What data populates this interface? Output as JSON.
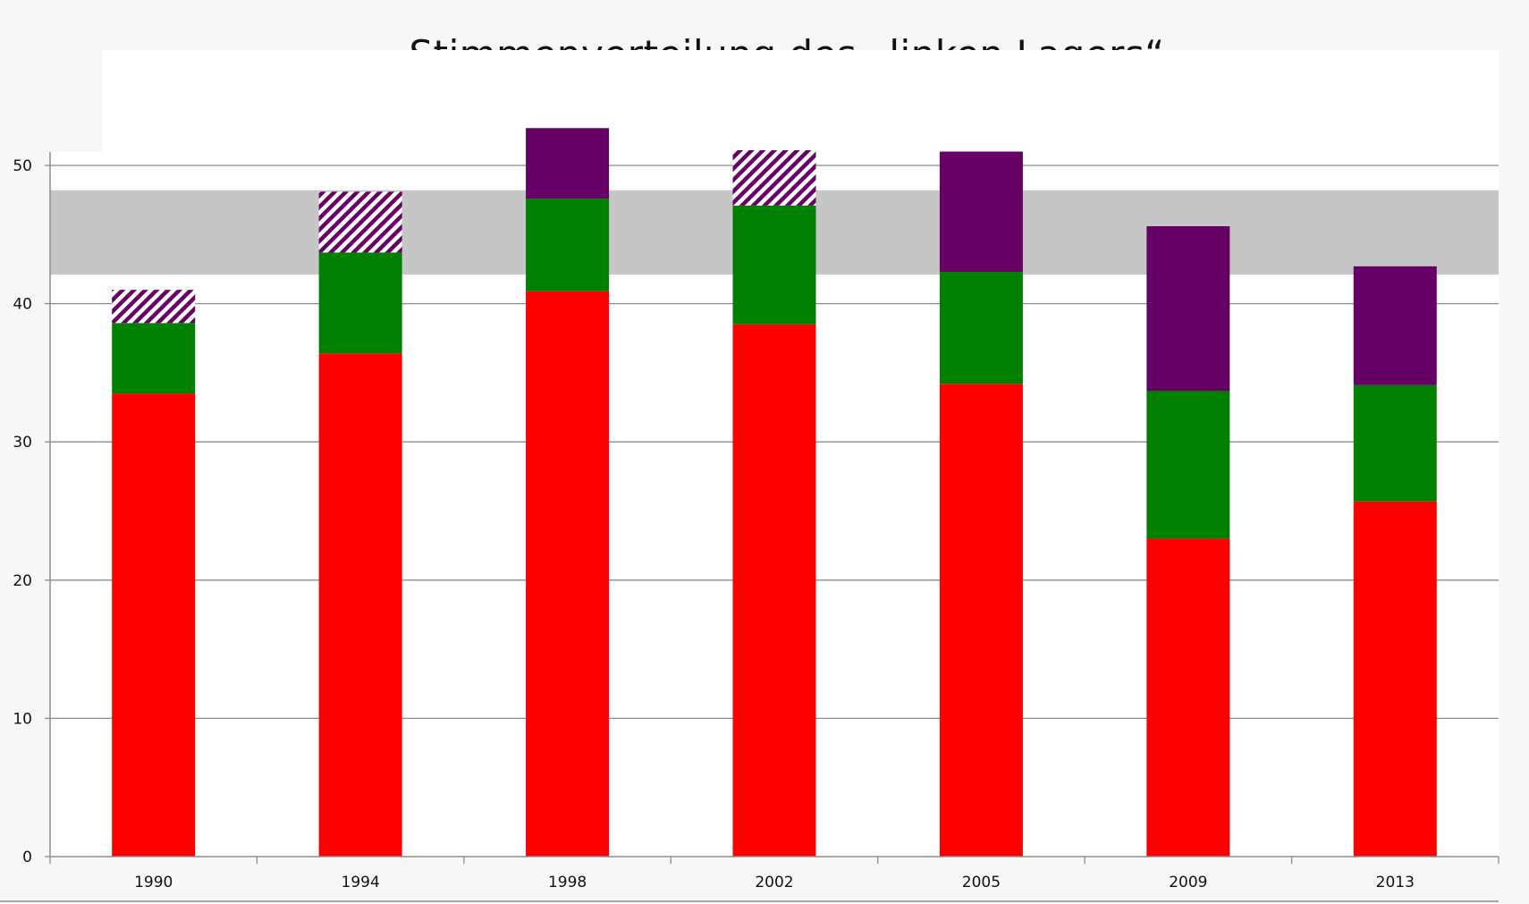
{
  "chart_data": {
    "type": "bar",
    "stacked": true,
    "title": "Stimmenverteilung des „linken Lagers“",
    "xlabel": "",
    "ylabel": "",
    "ylim": [
      0,
      50
    ],
    "yticks": [
      0,
      10,
      20,
      30,
      40,
      50
    ],
    "grid": true,
    "legend": "none",
    "categories": [
      "1990",
      "1994",
      "1998",
      "2002",
      "2005",
      "2009",
      "2013"
    ],
    "reference_band": {
      "from": 42.1,
      "to": 48.2,
      "color": "#c6c6c6"
    },
    "series": [
      {
        "color": "#ff0000",
        "pattern": "solid",
        "values": [
          33.5,
          36.4,
          40.9,
          38.5,
          34.2,
          23.0,
          25.7
        ]
      },
      {
        "color": "#008000",
        "pattern": "solid",
        "values": [
          5.1,
          7.3,
          6.7,
          8.6,
          8.1,
          10.7,
          8.4
        ]
      },
      {
        "color": "#660066",
        "pattern": "solid",
        "values": [
          0,
          0,
          5.1,
          0,
          8.7,
          11.9,
          8.6
        ]
      },
      {
        "color": "#660066",
        "pattern": "hatched",
        "values": [
          2.4,
          4.4,
          0,
          4.0,
          0,
          0,
          0
        ]
      }
    ]
  }
}
